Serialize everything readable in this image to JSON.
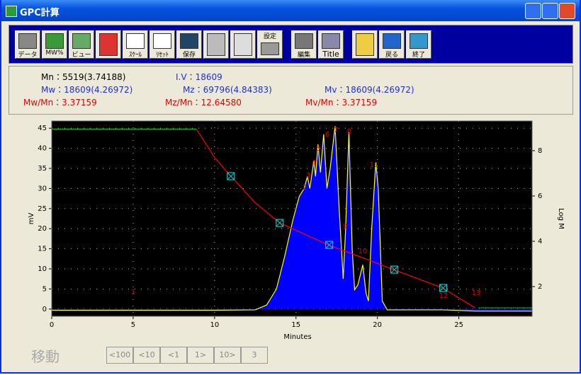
{
  "window": {
    "title": "GPC計算"
  },
  "toolbar": {
    "labels": [
      "データ",
      "MW%",
      "ビュー",
      "ｽｹｰﾙ",
      "ﾘｾｯﾄ",
      "保存",
      "設定",
      "編集",
      "Title",
      "戻る",
      "終了"
    ]
  },
  "stats": {
    "mn": "Mn：5519(3.74188)",
    "iv": "I.V：18609",
    "mw": "Mw：18609(4.26972)",
    "mz": "Mz：69796(4.84383)",
    "mv": "Mv：18609(4.26972)",
    "mw_mn": "Mw/Mn：3.37159",
    "mz_mn": "Mz/Mn：12.64580",
    "mv_mn": "Mv/Mn：3.37159"
  },
  "chart_data": {
    "type": "line",
    "x_label": "Minutes",
    "y_label": "mV",
    "y2_label": "Log M",
    "xlim": [
      0,
      29.5
    ],
    "ylim": [
      -1.8,
      46.8
    ],
    "y2lim": [
      0.69,
      9.31
    ],
    "xticks": [
      0,
      5,
      10,
      15,
      20,
      25
    ],
    "yticks": [
      0,
      5,
      10,
      15,
      20,
      25,
      30,
      35,
      40,
      45
    ],
    "y2ticks": [
      2,
      4,
      6,
      8
    ],
    "grid": true,
    "series": [
      {
        "color": "#ffff00",
        "fill": "#0000ff",
        "x": [
          0,
          5,
          10,
          12.5,
          13.2,
          13.8,
          14.3,
          14.8,
          15.2,
          15.5,
          15.7,
          15.85,
          16.1,
          16.2,
          16.35,
          16.5,
          16.7,
          16.9,
          17.1,
          17.4,
          17.65,
          17.9,
          18.05,
          18.25,
          18.45,
          18.6,
          18.8,
          19.1,
          19.3,
          19.45,
          19.65,
          19.9,
          20.05,
          20.3,
          20.6,
          24,
          26,
          29.5
        ],
        "values": [
          -0.3,
          -0.3,
          -0.3,
          -0.2,
          1,
          5,
          13,
          22,
          28,
          30,
          33,
          30,
          37,
          33,
          41,
          34,
          43.5,
          30,
          35,
          45.5,
          25,
          7.5,
          20,
          44,
          15,
          4.8,
          6,
          11,
          4,
          2,
          20,
          36.5,
          30,
          2,
          -0.2,
          -0.2,
          -0.5,
          -0.5
        ]
      },
      {
        "color": "#00c000",
        "x": [
          0,
          8.9,
          8.9,
          26.2,
          29.5
        ],
        "values": [
          44.8,
          44.8,
          null,
          0.3,
          0.3
        ]
      },
      {
        "color": "#ff0000",
        "axis": "y2",
        "x": [
          8.9,
          10,
          11,
          12.5,
          14,
          17,
          19,
          21,
          24,
          25,
          26
        ],
        "values": [
          8.94,
          7.7,
          6.875,
          5.7,
          4.81,
          3.84,
          3.3,
          2.75,
          1.94,
          1.5,
          1.06
        ]
      },
      {
        "type": "scatter",
        "color": "#00c8c8",
        "axis": "y2",
        "x": [
          11,
          14,
          17.04,
          21.04,
          24.04
        ],
        "values": [
          6.875,
          4.81,
          3.84,
          2.75,
          1.94
        ]
      }
    ],
    "annotations": [
      "1",
      "2",
      "3",
      "4",
      "5",
      "6",
      "7",
      "8",
      "9",
      "10",
      "11",
      "12",
      "13"
    ]
  },
  "nav": {
    "title": "移動",
    "buttons": [
      "<100",
      "<10",
      "<1",
      "1>",
      "10>",
      "3"
    ]
  }
}
